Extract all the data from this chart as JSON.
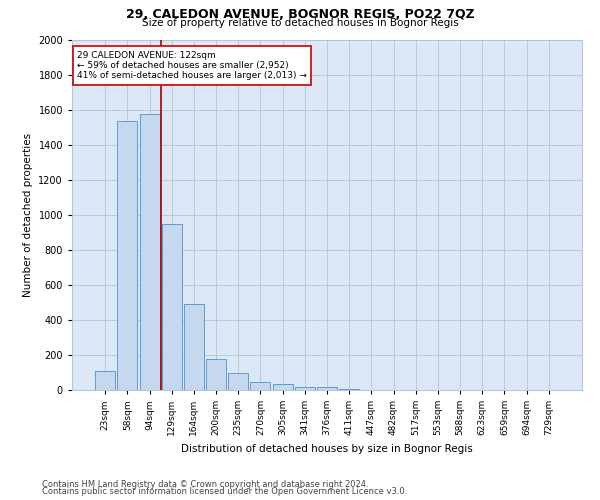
{
  "title1": "29, CALEDON AVENUE, BOGNOR REGIS, PO22 7QZ",
  "title2": "Size of property relative to detached houses in Bognor Regis",
  "xlabel": "Distribution of detached houses by size in Bognor Regis",
  "ylabel": "Number of detached properties",
  "categories": [
    "23sqm",
    "58sqm",
    "94sqm",
    "129sqm",
    "164sqm",
    "200sqm",
    "235sqm",
    "270sqm",
    "305sqm",
    "341sqm",
    "376sqm",
    "411sqm",
    "447sqm",
    "482sqm",
    "517sqm",
    "553sqm",
    "588sqm",
    "623sqm",
    "659sqm",
    "694sqm",
    "729sqm"
  ],
  "values": [
    110,
    1535,
    1575,
    950,
    490,
    180,
    95,
    45,
    35,
    20,
    15,
    5,
    0,
    0,
    0,
    0,
    0,
    0,
    0,
    0,
    0
  ],
  "bar_color": "#c5d8ee",
  "bar_edge_color": "#5b9bd5",
  "vline_x": 2.5,
  "vline_color": "#aa0000",
  "annotation_text": "29 CALEDON AVENUE: 122sqm\n← 59% of detached houses are smaller (2,952)\n41% of semi-detached houses are larger (2,013) →",
  "annotation_box_color": "#ffffff",
  "annotation_box_edge": "#cc0000",
  "ylim": [
    0,
    2000
  ],
  "yticks": [
    0,
    200,
    400,
    600,
    800,
    1000,
    1200,
    1400,
    1600,
    1800,
    2000
  ],
  "footer1": "Contains HM Land Registry data © Crown copyright and database right 2024.",
  "footer2": "Contains public sector information licensed under the Open Government Licence v3.0.",
  "bg_color": "#ffffff",
  "plot_bg_color": "#dce8f5",
  "grid_color": "#b0c4d8",
  "fig_width": 6.0,
  "fig_height": 5.0,
  "dpi": 100
}
